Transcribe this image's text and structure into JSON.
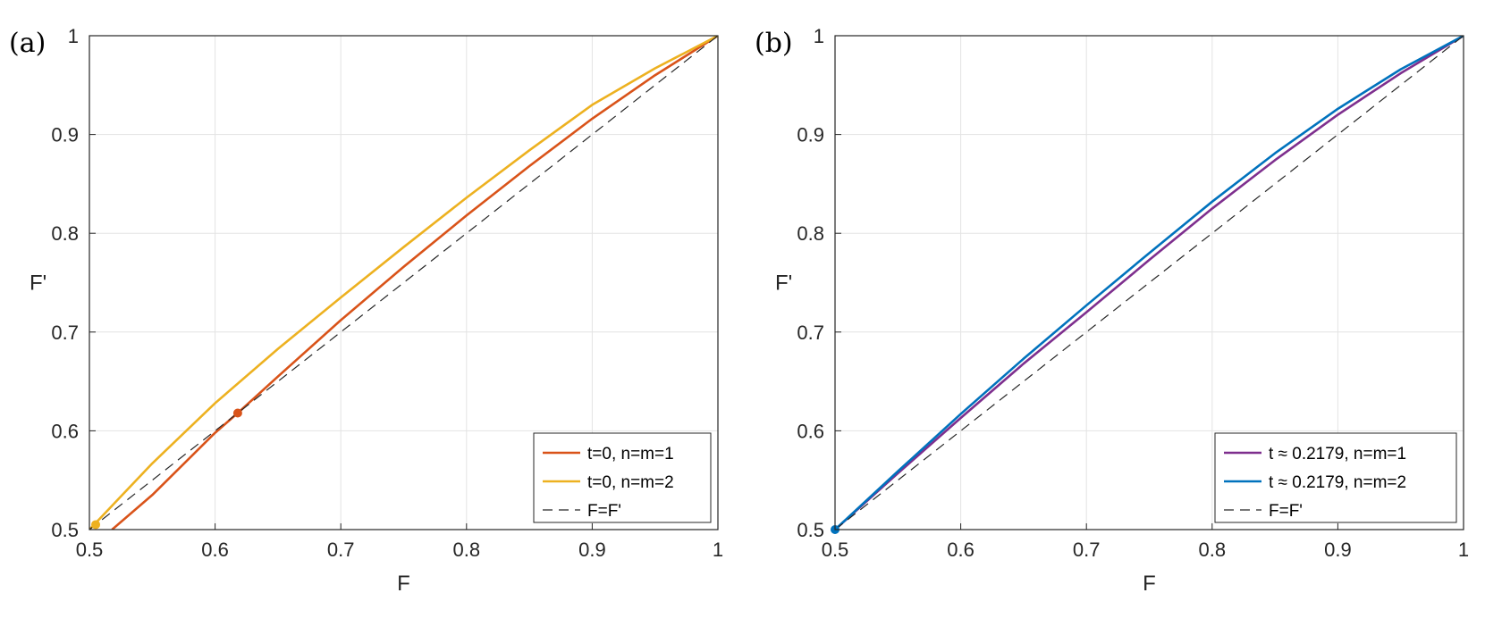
{
  "chart_data": [
    {
      "type": "line",
      "panel_label": "(a)",
      "xlabel": "F",
      "ylabel": "F'",
      "xlim": [
        0.5,
        1
      ],
      "ylim": [
        0.5,
        1
      ],
      "grid": true,
      "legend_position": "bottom-right",
      "x_ticks": [
        "0.5",
        "0.6",
        "0.7",
        "0.8",
        "0.9",
        "1"
      ],
      "y_ticks": [
        "0.5",
        "0.6",
        "0.7",
        "0.8",
        "0.9",
        "1"
      ],
      "series": [
        {
          "name": "t=0, n=m=1",
          "color": "#d95319",
          "style": "solid",
          "x": [
            0.518,
            0.55,
            0.6,
            0.618,
            0.65,
            0.7,
            0.75,
            0.8,
            0.85,
            0.9,
            0.95,
            1.0
          ],
          "y": [
            0.5,
            0.535,
            0.598,
            0.618,
            0.655,
            0.712,
            0.766,
            0.818,
            0.868,
            0.916,
            0.96,
            1.0
          ]
        },
        {
          "name": "t=0, n=m=2",
          "color": "#edb120",
          "style": "solid",
          "x": [
            0.5,
            0.55,
            0.6,
            0.65,
            0.7,
            0.75,
            0.8,
            0.85,
            0.9,
            0.95,
            1.0
          ],
          "y": [
            0.5,
            0.567,
            0.628,
            0.683,
            0.735,
            0.786,
            0.836,
            0.884,
            0.93,
            0.967,
            1.0
          ]
        },
        {
          "name": "F=F'",
          "color": "#262626",
          "style": "dashed",
          "x": [
            0.5,
            1.0
          ],
          "y": [
            0.5,
            1.0
          ]
        }
      ],
      "markers": [
        {
          "x": 0.618,
          "y": 0.618,
          "color": "#d95319"
        },
        {
          "x": 0.505,
          "y": 0.505,
          "color": "#edb120"
        }
      ]
    },
    {
      "type": "line",
      "panel_label": "(b)",
      "xlabel": "F",
      "ylabel": "F'",
      "xlim": [
        0.5,
        1
      ],
      "ylim": [
        0.5,
        1
      ],
      "grid": true,
      "legend_position": "bottom-right",
      "x_ticks": [
        "0.5",
        "0.6",
        "0.7",
        "0.8",
        "0.9",
        "1"
      ],
      "y_ticks": [
        "0.5",
        "0.6",
        "0.7",
        "0.8",
        "0.9",
        "1"
      ],
      "series": [
        {
          "name": "t ≈ 0.2179, n=m=1",
          "color": "#7e2f8e",
          "style": "solid",
          "x": [
            0.5,
            0.55,
            0.6,
            0.65,
            0.7,
            0.75,
            0.8,
            0.85,
            0.9,
            0.95,
            1.0
          ],
          "y": [
            0.5,
            0.557,
            0.613,
            0.668,
            0.72,
            0.773,
            0.825,
            0.874,
            0.92,
            0.962,
            1.0
          ]
        },
        {
          "name": "t ≈ 0.2179, n=m=2",
          "color": "#0072bd",
          "style": "solid",
          "x": [
            0.5,
            0.55,
            0.6,
            0.65,
            0.7,
            0.75,
            0.8,
            0.85,
            0.9,
            0.95,
            1.0
          ],
          "y": [
            0.5,
            0.559,
            0.617,
            0.673,
            0.727,
            0.78,
            0.832,
            0.881,
            0.926,
            0.966,
            1.0
          ]
        },
        {
          "name": "F=F'",
          "color": "#262626",
          "style": "dashed",
          "x": [
            0.5,
            1.0
          ],
          "y": [
            0.5,
            1.0
          ]
        }
      ],
      "markers": [
        {
          "x": 0.5,
          "y": 0.5,
          "color": "#0072bd"
        }
      ]
    }
  ]
}
